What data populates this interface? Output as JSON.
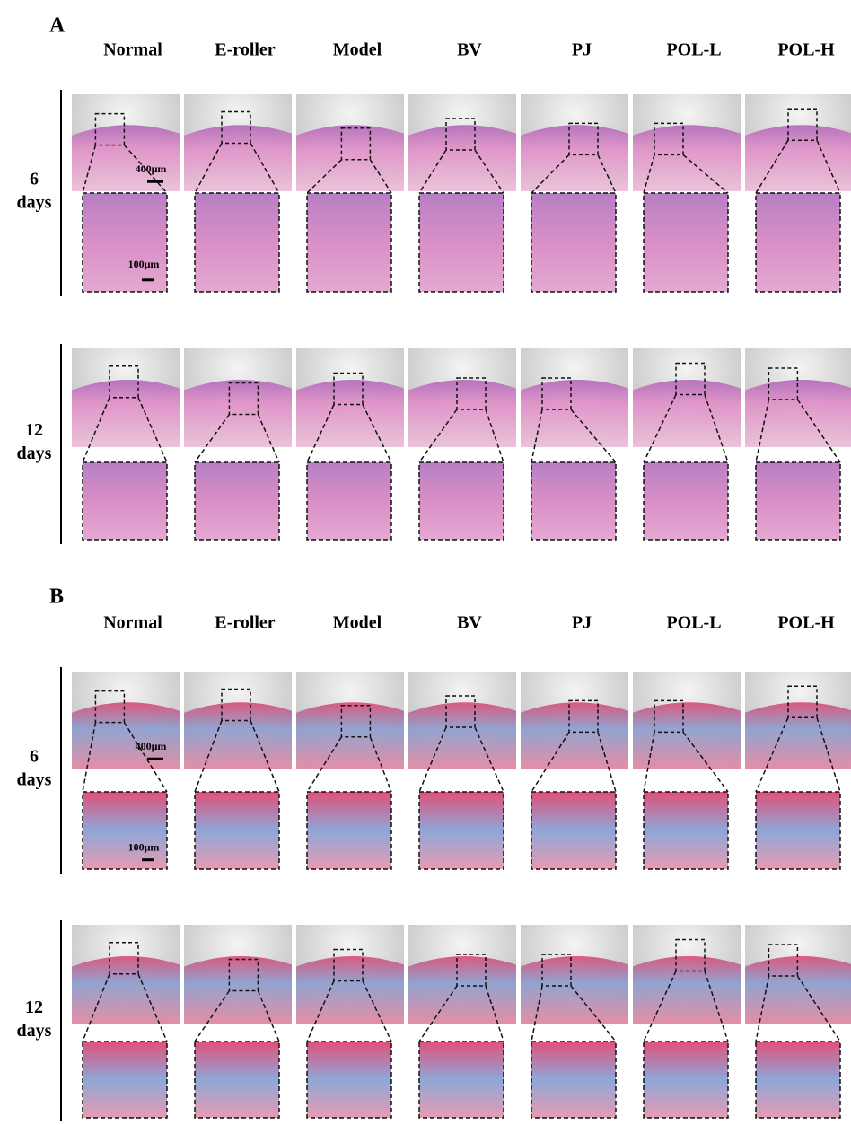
{
  "panels": [
    {
      "label": "A",
      "columns": [
        "Normal",
        "E-roller",
        "Model",
        "BV",
        "PJ",
        "POL-L",
        "POL-H"
      ],
      "rows": [
        {
          "number": "6",
          "unit": "days",
          "scale_large": "400μm",
          "scale_small": "100μm"
        },
        {
          "number": "12",
          "unit": "days"
        }
      ]
    },
    {
      "label": "B",
      "columns": [
        "Normal",
        "E-roller",
        "Model",
        "BV",
        "PJ",
        "POL-L",
        "POL-H"
      ],
      "rows": [
        {
          "number": "6",
          "unit": "days",
          "scale_large": "400μm",
          "scale_small": "100μm"
        },
        {
          "number": "12",
          "unit": "days"
        }
      ]
    }
  ]
}
